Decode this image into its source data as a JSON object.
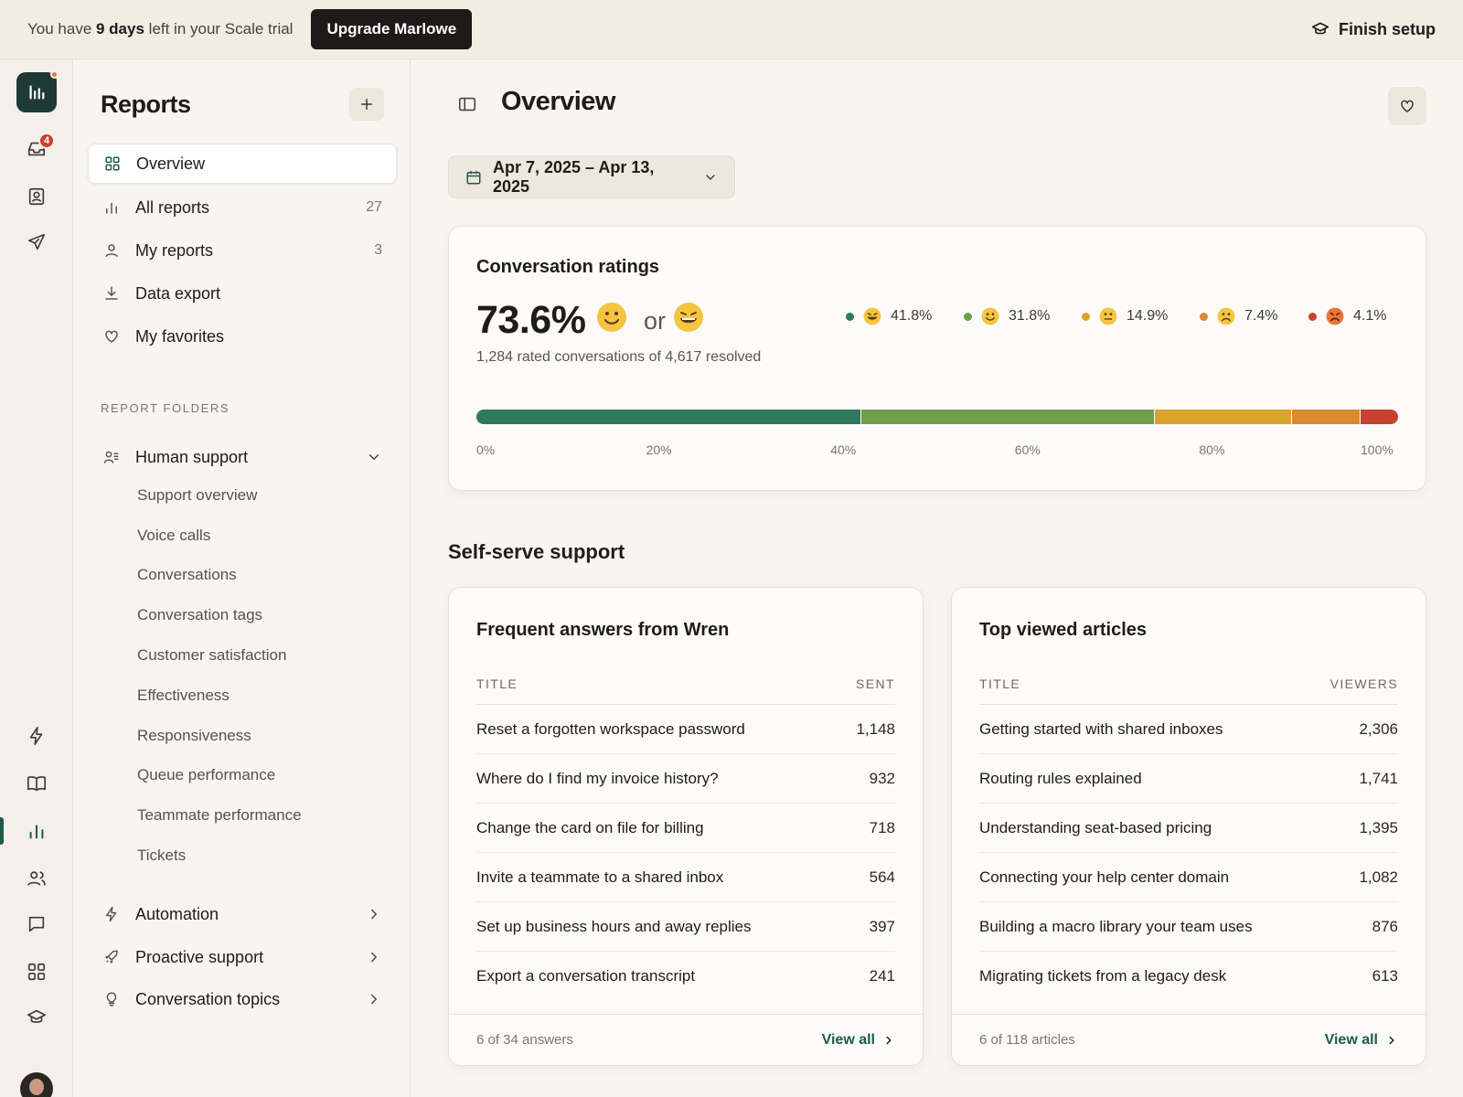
{
  "banner": {
    "msg_prefix": "You have ",
    "msg_days": "9 days",
    "msg_suffix": " left in your Scale trial",
    "upgrade_label": "Upgrade Marlowe",
    "finish_label": "Finish setup"
  },
  "rail": {
    "inbox_badge": "4"
  },
  "sidebar": {
    "title": "Reports",
    "nav": [
      {
        "label": "Overview",
        "icon": "grid-icon"
      },
      {
        "label": "All reports",
        "count": "27",
        "icon": "bar-chart-icon"
      },
      {
        "label": "My reports",
        "count": "3",
        "icon": "person-icon"
      },
      {
        "label": "Data export",
        "icon": "download-icon"
      },
      {
        "label": "My favorites",
        "icon": "heart-icon"
      }
    ],
    "folders_label": "REPORT FOLDERS",
    "human_support": {
      "label": "Human support",
      "items": [
        "Support overview",
        "Voice calls",
        "Conversations",
        "Conversation tags",
        "Customer satisfaction",
        "Effectiveness",
        "Responsiveness",
        "Queue performance",
        "Teammate performance",
        "Tickets"
      ]
    },
    "folders": [
      {
        "label": "Automation",
        "icon": "bolt-icon"
      },
      {
        "label": "Proactive support",
        "icon": "rocket-icon"
      },
      {
        "label": "Conversation topics",
        "icon": "lightbulb-icon"
      }
    ]
  },
  "main": {
    "title": "Overview",
    "date_range": "Apr 7, 2025 – Apr 13, 2025",
    "ratings": {
      "title": "Conversation ratings",
      "percent": "73.6%",
      "or": "or",
      "subtitle": "1,284 rated conversations of 4,617 resolved",
      "legend": [
        {
          "label": "41.8%",
          "value": 41.8,
          "color": "#2e7a5e"
        },
        {
          "label": "31.8%",
          "value": 31.8,
          "color": "#6e9e4a"
        },
        {
          "label": "14.9%",
          "value": 14.9,
          "color": "#d9a42a"
        },
        {
          "label": "7.4%",
          "value": 7.4,
          "color": "#d98a32"
        },
        {
          "label": "4.1%",
          "value": 4.1,
          "color": "#c8412e"
        }
      ],
      "ticks": [
        "0%",
        "20%",
        "40%",
        "60%",
        "80%",
        "100%"
      ]
    },
    "self_serve": {
      "title": "Self-serve support",
      "answers": {
        "title": "Frequent answers from Wren",
        "col_title": "TITLE",
        "col_value": "SENT",
        "rows": [
          {
            "title": "Reset a forgotten workspace password",
            "value": "1,148"
          },
          {
            "title": "Where do I find my invoice history?",
            "value": "932"
          },
          {
            "title": "Change the card on file for billing",
            "value": "718"
          },
          {
            "title": "Invite a teammate to a shared inbox",
            "value": "564"
          },
          {
            "title": "Set up business hours and away replies",
            "value": "397"
          },
          {
            "title": "Export a conversation transcript",
            "value": "241"
          }
        ],
        "footer_count": "6 of 34 answers",
        "view_all": "View all"
      },
      "articles": {
        "title": "Top viewed articles",
        "col_title": "TITLE",
        "col_value": "VIEWERS",
        "rows": [
          {
            "title": "Getting started with shared inboxes",
            "value": "2,306"
          },
          {
            "title": "Routing rules explained",
            "value": "1,741"
          },
          {
            "title": "Understanding seat-based pricing",
            "value": "1,395"
          },
          {
            "title": "Connecting your help center domain",
            "value": "1,082"
          },
          {
            "title": "Building a macro library your team uses",
            "value": "876"
          },
          {
            "title": "Migrating tickets from a legacy desk",
            "value": "613"
          }
        ],
        "footer_count": "6 of 118 articles",
        "view_all": "View all"
      }
    }
  }
}
